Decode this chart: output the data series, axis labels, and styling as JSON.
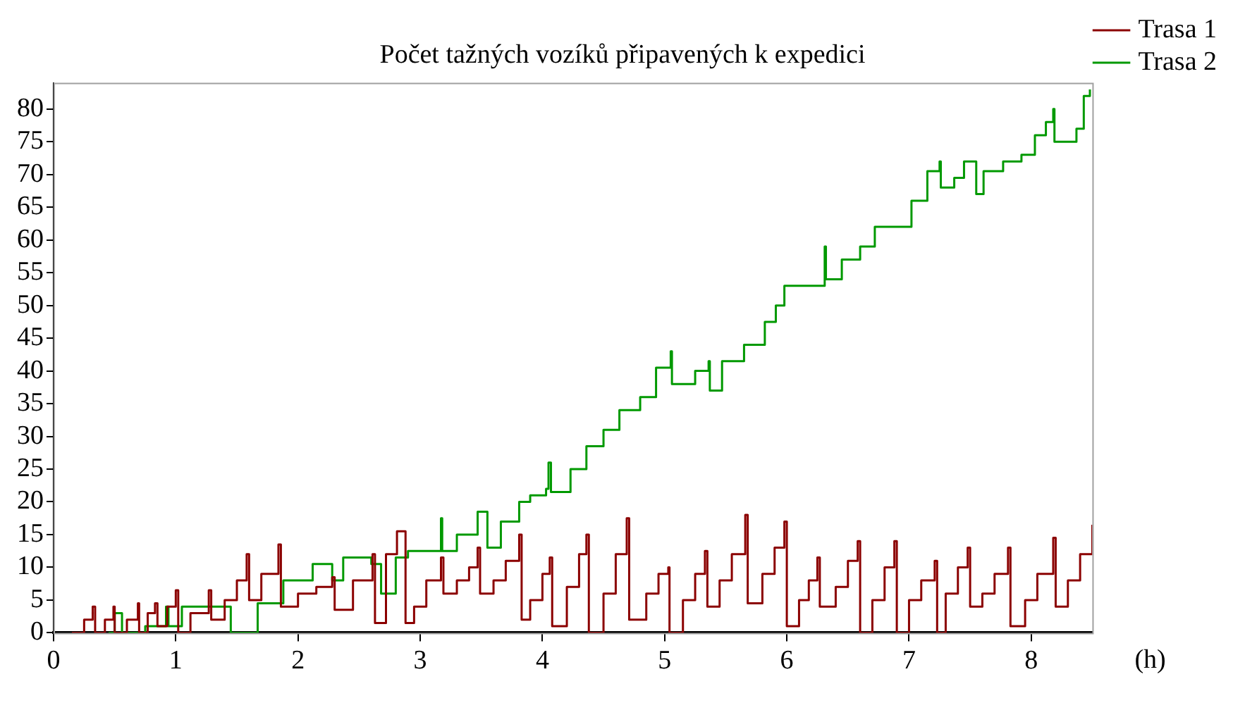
{
  "chart_data": {
    "type": "step",
    "title": "Počet tažných vozíků připavených k expedici",
    "xlabel": "(h)",
    "xlim": [
      0,
      8.5
    ],
    "xticks": [
      0,
      1,
      2,
      3,
      4,
      5,
      6,
      7,
      8
    ],
    "ylim": [
      0,
      84
    ],
    "yticks": [
      0,
      5,
      10,
      15,
      20,
      25,
      30,
      35,
      40,
      45,
      50,
      55,
      60,
      65,
      70,
      75,
      80
    ],
    "grid": false,
    "legend": "top right",
    "marker": "none",
    "series": [
      {
        "name": "Trasa 1",
        "color": "#8b0000",
        "x": [
          0.15,
          0.25,
          0.32,
          0.34,
          0.42,
          0.49,
          0.5,
          0.6,
          0.69,
          0.7,
          0.77,
          0.83,
          0.85,
          0.93,
          1.0,
          1.02,
          1.12,
          1.27,
          1.29,
          1.4,
          1.5,
          1.58,
          1.6,
          1.7,
          1.84,
          1.86,
          2.0,
          2.15,
          2.28,
          2.3,
          2.45,
          2.61,
          2.63,
          2.72,
          2.81,
          2.86,
          2.88,
          2.95,
          3.05,
          3.17,
          3.19,
          3.3,
          3.4,
          3.47,
          3.49,
          3.6,
          3.7,
          3.81,
          3.83,
          3.9,
          4.0,
          4.06,
          4.08,
          4.2,
          4.3,
          4.36,
          4.38,
          4.5,
          4.6,
          4.69,
          4.71,
          4.85,
          4.95,
          5.03,
          5.04,
          5.15,
          5.25,
          5.33,
          5.35,
          5.45,
          5.55,
          5.66,
          5.68,
          5.8,
          5.9,
          5.98,
          6.0,
          6.1,
          6.18,
          6.25,
          6.27,
          6.4,
          6.5,
          6.58,
          6.6,
          6.7,
          6.8,
          6.88,
          6.9,
          7.0,
          7.1,
          7.21,
          7.23,
          7.3,
          7.4,
          7.48,
          7.5,
          7.6,
          7.7,
          7.81,
          7.83,
          7.95,
          8.05,
          8.18,
          8.2,
          8.3,
          8.4,
          8.5
        ],
        "values": [
          0,
          2,
          4,
          0,
          2,
          4,
          0,
          2,
          4.5,
          0,
          3,
          4.5,
          1,
          4,
          6.5,
          0,
          3,
          6.5,
          2,
          5,
          8,
          12,
          5,
          9,
          13.5,
          4,
          6,
          7,
          8.5,
          3.5,
          8,
          12,
          1.5,
          12,
          15.5,
          15.5,
          1.5,
          4,
          8,
          11.5,
          6,
          8,
          10,
          13,
          6,
          8,
          11,
          15,
          2,
          5,
          9,
          11.5,
          1,
          7,
          12,
          15,
          0,
          6,
          12,
          17.5,
          2,
          6,
          9,
          10,
          0,
          5,
          9,
          12.5,
          4,
          8,
          12,
          18,
          4.5,
          9,
          13,
          17,
          1,
          5,
          8,
          11.5,
          4,
          7,
          11,
          14,
          0,
          5,
          10,
          14,
          0,
          5,
          8,
          11,
          0,
          6,
          10,
          13,
          4,
          6,
          9,
          13,
          1,
          5,
          9,
          14.5,
          4,
          8,
          12,
          16.5
        ]
      },
      {
        "name": "Trasa 2",
        "color": "#009900",
        "x": [
          0.45,
          0.5,
          0.56,
          0.75,
          0.92,
          0.94,
          1.05,
          1.45,
          1.62,
          1.67,
          1.88,
          2.12,
          2.28,
          2.37,
          2.6,
          2.68,
          2.8,
          2.9,
          3.17,
          3.18,
          3.3,
          3.47,
          3.55,
          3.66,
          3.81,
          3.9,
          4.03,
          4.05,
          4.07,
          4.23,
          4.36,
          4.5,
          4.63,
          4.8,
          4.93,
          5.05,
          5.06,
          5.25,
          5.36,
          5.37,
          5.47,
          5.65,
          5.82,
          5.91,
          5.98,
          6.25,
          6.31,
          6.32,
          6.45,
          6.6,
          6.72,
          7.02,
          7.15,
          7.25,
          7.26,
          7.37,
          7.45,
          7.55,
          7.61,
          7.77,
          7.92,
          8.03,
          8.12,
          8.18,
          8.19,
          8.37,
          8.43,
          8.48
        ],
        "values": [
          0,
          3,
          0,
          1,
          4,
          1,
          4,
          0,
          0,
          4.5,
          8,
          10.5,
          8,
          11.5,
          10.5,
          6,
          11.5,
          12.5,
          17.5,
          12.5,
          15,
          18.5,
          13,
          17,
          20,
          21,
          22,
          26,
          21.5,
          25,
          28.5,
          31,
          34,
          36,
          40.5,
          43,
          38,
          40,
          41.5,
          37,
          41.5,
          44,
          47.5,
          50,
          53,
          53,
          59,
          54,
          57,
          59,
          62,
          66,
          70.5,
          72,
          68,
          69.5,
          72,
          67,
          70.5,
          72,
          73,
          76,
          78,
          80,
          75,
          77,
          82,
          83
        ]
      }
    ]
  }
}
